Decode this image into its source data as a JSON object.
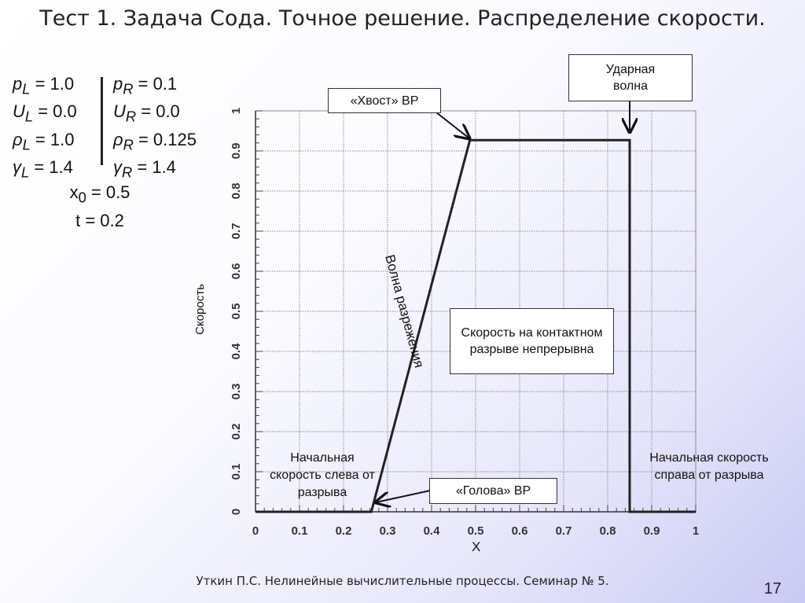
{
  "title": "Тест 1. Задача Сода. Точное решение. Распределение скорости.",
  "params": {
    "left": [
      {
        "sym": "p",
        "sub": "L",
        "val": " = 1.0"
      },
      {
        "sym": "U",
        "sub": "L",
        "val": " = 0.0"
      },
      {
        "sym": "ρ",
        "sub": "L",
        "val": " = 1.0"
      },
      {
        "sym": "γ",
        "sub": "L",
        "val": " = 1.4"
      }
    ],
    "right": [
      {
        "sym": "p",
        "sub": "R",
        "val": " = 0.1"
      },
      {
        "sym": "U",
        "sub": "R",
        "val": " = 0.0"
      },
      {
        "sym": "ρ",
        "sub": "R",
        "val": " = 0.125"
      },
      {
        "sym": "γ",
        "sub": "R",
        "val": " = 1.4"
      }
    ],
    "x0_sym": "x",
    "x0_sub": "0",
    "x0_val": " = 0.5",
    "t": "t = 0.2"
  },
  "chart_data": {
    "type": "line",
    "title": "",
    "xlabel": "X",
    "ylabel": "Скорость",
    "xlim": [
      0,
      1
    ],
    "ylim": [
      0,
      1
    ],
    "grid": true,
    "xticks": [
      "0",
      "0.1",
      "0.2",
      "0.3",
      "0.4",
      "0.5",
      "0.6",
      "0.7",
      "0.8",
      "0.9",
      "1"
    ],
    "yticks": [
      "0",
      "0.1",
      "0.2",
      "0.3",
      "0.4",
      "0.5",
      "0.6",
      "0.7",
      "0.8",
      "0.9",
      "1"
    ],
    "series": [
      {
        "name": "velocity",
        "x": [
          0,
          0.263,
          0.487,
          0.85,
          0.85,
          1
        ],
        "y": [
          0,
          0,
          0.927,
          0.927,
          0,
          0
        ]
      }
    ],
    "annotations": {
      "tail": "«Хвост» ВР",
      "shock": "Ударная волна",
      "contact": "Скорость на контактном разрыве непрерывна",
      "head": "«Голова» ВР",
      "rarefaction": "Волна разрежения",
      "left_initial": "Начальная скорость слева от разрыва",
      "right_initial": "Начальная скорость справа от разрыва"
    }
  },
  "footer": "Уткин П.С. Нелинейные вычислительные процессы. Семинар № 5.",
  "page_number": "17"
}
